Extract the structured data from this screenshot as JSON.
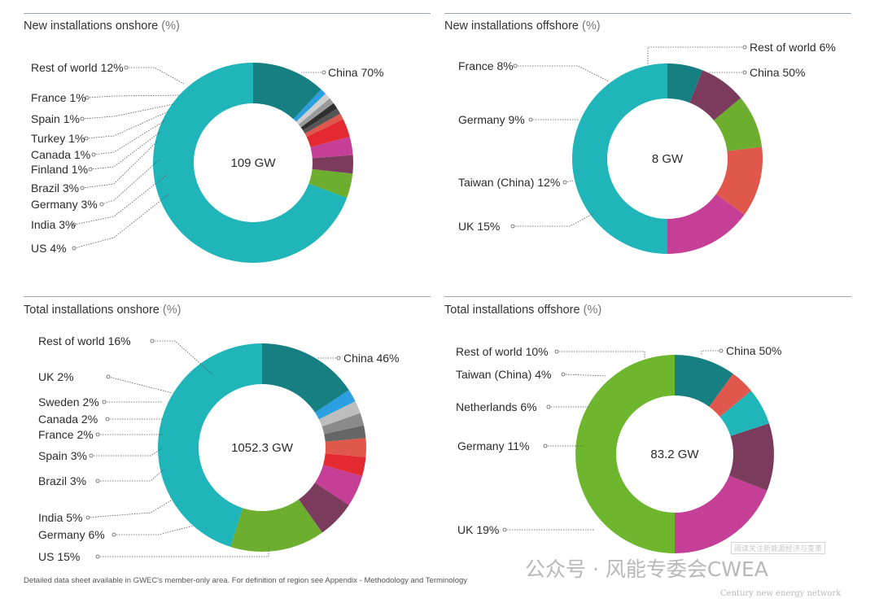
{
  "chart_data": [
    {
      "type": "pie",
      "title": "New installations onshore",
      "title_unit": "(%)",
      "center_label": "109 GW",
      "slices": [
        {
          "label": "China 70%",
          "value": 70,
          "color": "#20b5b8"
        },
        {
          "label": "US 4%",
          "value": 4,
          "color": "#6dae2f"
        },
        {
          "label": "India 3%",
          "value": 3,
          "color": "#7a3b5d"
        },
        {
          "label": "Germany 3%",
          "value": 3,
          "color": "#c43f95"
        },
        {
          "label": "Brazil 3%",
          "value": 3,
          "color": "#e22a30"
        },
        {
          "label": "Finland 1%",
          "value": 1,
          "color": "#e0574b"
        },
        {
          "label": "Canada 1%",
          "value": 1,
          "color": "#555555"
        },
        {
          "label": "Turkey 1%",
          "value": 1,
          "color": "#2f2f2f"
        },
        {
          "label": "Spain 1%",
          "value": 1,
          "color": "#9a9a9a"
        },
        {
          "label": "France 1%",
          "value": 1,
          "color": "#cfcfcf"
        },
        {
          "label": "",
          "value": 1,
          "color": "#2b9fe0"
        },
        {
          "label": "Rest of world 12%",
          "value": 12,
          "color": "#157f82"
        }
      ]
    },
    {
      "type": "pie",
      "title": "New installations offshore",
      "title_unit": "(%)",
      "center_label": "8 GW",
      "slices": [
        {
          "label": "China 50%",
          "value": 50,
          "color": "#20b5b8"
        },
        {
          "label": "UK 15%",
          "value": 15,
          "color": "#c43f95"
        },
        {
          "label": "Taiwan (China) 12%",
          "value": 12,
          "color": "#e0574b"
        },
        {
          "label": "Germany 9%",
          "value": 9,
          "color": "#6dae2f"
        },
        {
          "label": "France 8%",
          "value": 8,
          "color": "#7a3b5d"
        },
        {
          "label": "Rest of world 6%",
          "value": 6,
          "color": "#157f82"
        }
      ]
    },
    {
      "type": "pie",
      "title": "Total installations onshore",
      "title_unit": "(%)",
      "center_label": "1052.3 GW",
      "slices": [
        {
          "label": "China 46%",
          "value": 46,
          "color": "#20b5b8"
        },
        {
          "label": "US 15%",
          "value": 15,
          "color": "#6dae2f"
        },
        {
          "label": "Germany 6%",
          "value": 6,
          "color": "#7a3b5d"
        },
        {
          "label": "India 5%",
          "value": 5,
          "color": "#c43f95"
        },
        {
          "label": "Brazil 3%",
          "value": 3,
          "color": "#e22a30"
        },
        {
          "label": "Spain 3%",
          "value": 3,
          "color": "#e0574b"
        },
        {
          "label": "France 2%",
          "value": 2,
          "color": "#666666"
        },
        {
          "label": "Canada 2%",
          "value": 2,
          "color": "#8a8a8a"
        },
        {
          "label": "Sweden 2%",
          "value": 2,
          "color": "#bdbdbd"
        },
        {
          "label": "UK 2%",
          "value": 2,
          "color": "#2b9fe0"
        },
        {
          "label": "Rest of world 16%",
          "value": 16,
          "color": "#157f82"
        }
      ]
    },
    {
      "type": "pie",
      "title": "Total installations offshore",
      "title_unit": "(%)",
      "center_label": "83.2 GW",
      "slices": [
        {
          "label": "China 50%",
          "value": 50,
          "color": "#6db62e"
        },
        {
          "label": "UK 19%",
          "value": 19,
          "color": "#c43f95"
        },
        {
          "label": "Germany 11%",
          "value": 11,
          "color": "#7a3b5d"
        },
        {
          "label": "Netherlands 6%",
          "value": 6,
          "color": "#20b5b8"
        },
        {
          "label": "Taiwan (China) 4%",
          "value": 4,
          "color": "#e0574b"
        },
        {
          "label": "Rest of world 10%",
          "value": 10,
          "color": "#157f82"
        }
      ]
    }
  ],
  "footnote": "Detailed data sheet available in GWEC's member-only area. For definition of region see Appendix - Methodology and Terminology",
  "watermark": {
    "main": "公众号 · 风能专委会CWEA",
    "sub": "Century new energy network",
    "box": "阅读关注新能源经济与变革"
  }
}
